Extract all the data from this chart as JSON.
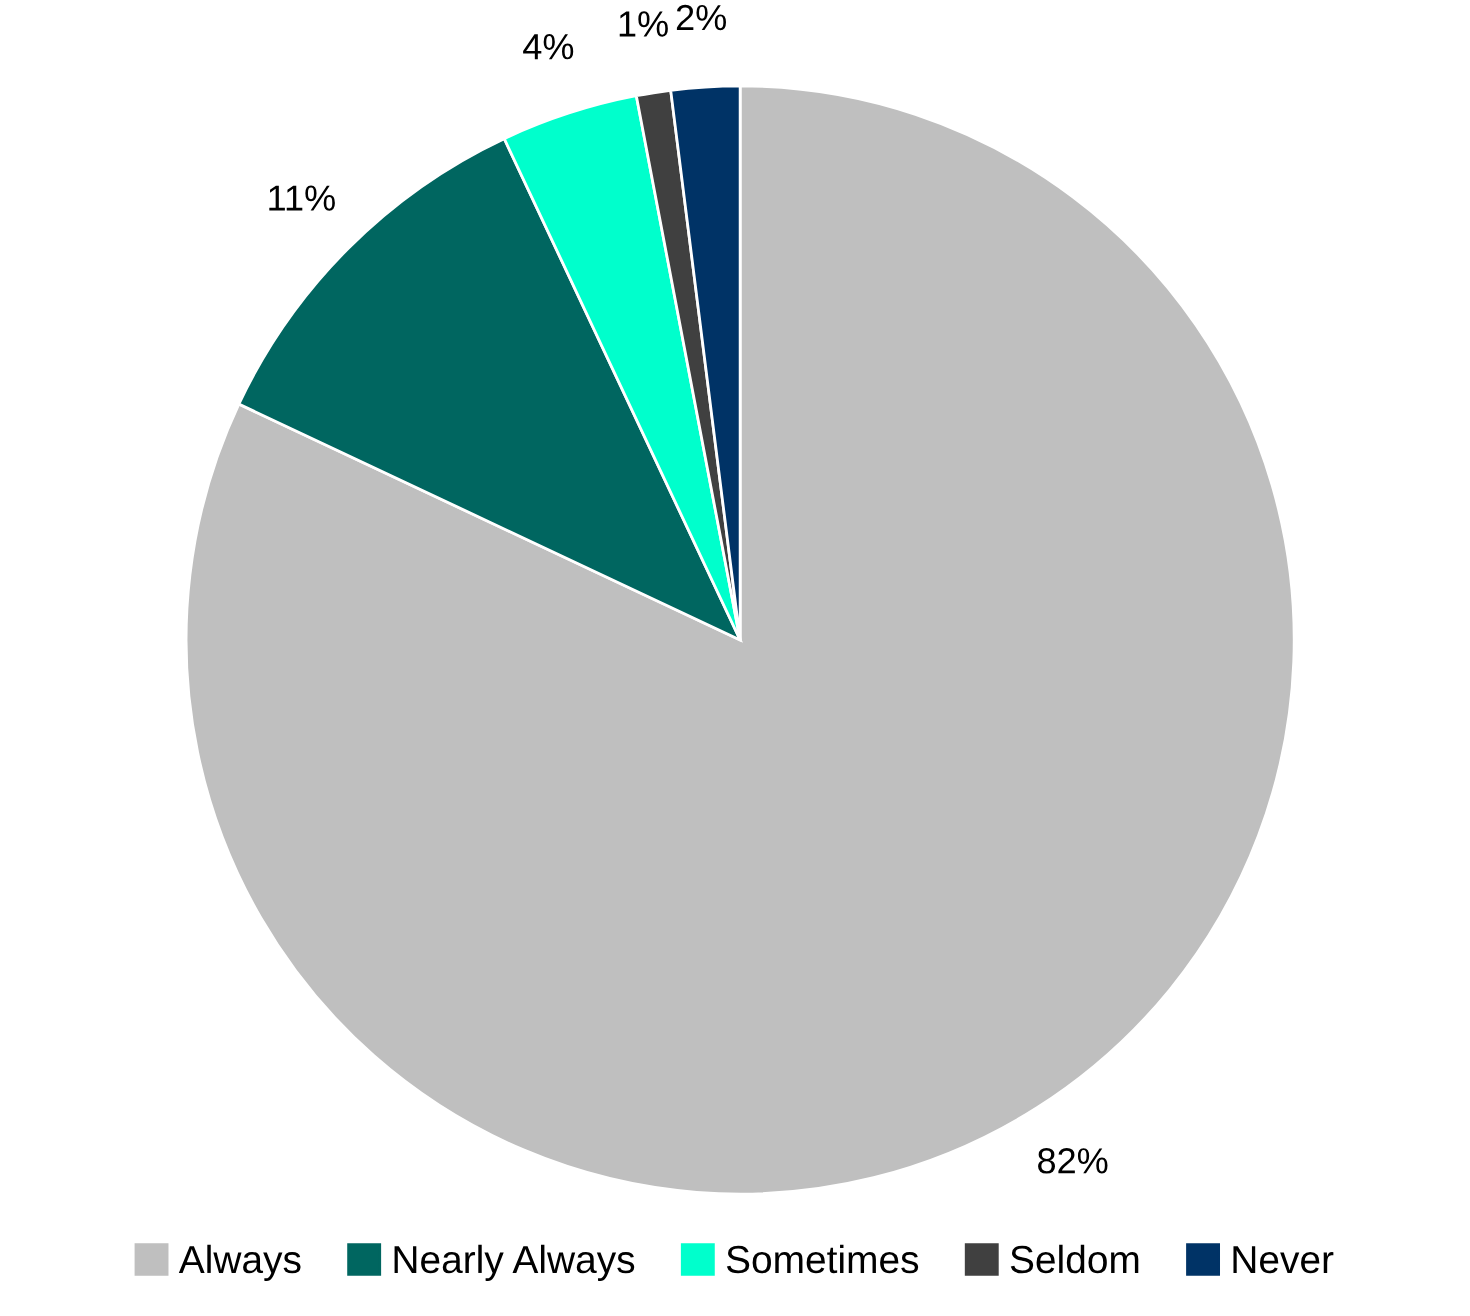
{
  "chart_data": {
    "type": "pie",
    "categories": [
      "Always",
      "Nearly Always",
      "Sometimes",
      "Seldom",
      "Never"
    ],
    "values": [
      82,
      11,
      4,
      1,
      2
    ],
    "colors": [
      "#bfbfbf",
      "#006660",
      "#00ffcc",
      "#404040",
      "#003366"
    ],
    "value_labels": [
      "82%",
      "11%",
      "4%",
      "1%",
      "2%"
    ],
    "legend": "bottom"
  }
}
